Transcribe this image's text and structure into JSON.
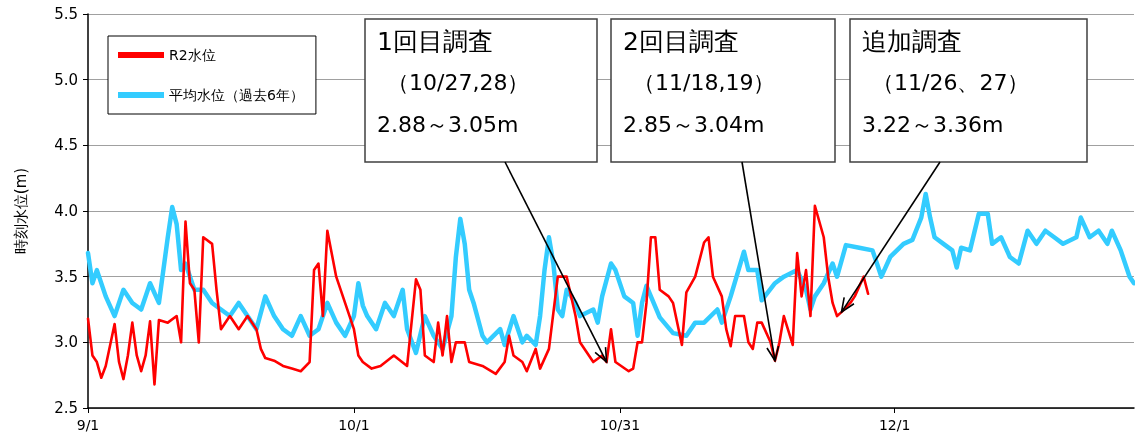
{
  "chart_data": {
    "type": "line",
    "ylabel": "時刻水位(m)",
    "xlim": [
      "--09-01",
      "--12-28"
    ],
    "ylim": [
      2.5,
      5.5
    ],
    "xticks": [
      {
        "value": "--09-01",
        "label": "9/1"
      },
      {
        "value": "--10-01",
        "label": "10/1"
      },
      {
        "value": "--10-31",
        "label": "10/31"
      },
      {
        "value": "--12-01",
        "label": "12/1"
      }
    ],
    "yticks": [
      2.5,
      {
        "value": 3,
        "label": "3.0"
      },
      3.5,
      {
        "value": 4,
        "label": "4.0"
      },
      4.5,
      {
        "value": 5,
        "label": "5.0"
      },
      5.5
    ],
    "grid": "y",
    "legend": "top left",
    "marker": "none",
    "annotations": [
      "1回目調査",
      "（10/27,28）",
      {
        "text": "2.88～3.05m",
        "x": "--10-29T12:00",
        "y": 2.85
      },
      "2回目調査",
      "（11/18,19）",
      {
        "text": "2.85～3.04m",
        "x": "--11-17T12:00",
        "y": 2.86
      },
      "追加調査",
      "（11/26、27）",
      {
        "text": "3.22～3.36m",
        "x": "--11-25",
        "y": 3.23
      }
    ],
    "series": [
      {
        "name": "R2水位",
        "color": "#ff0000",
        "x": [
          "--09-01",
          "--09-01T12:00",
          "--09-02",
          "--09-02T12:00",
          "--09-03",
          "--09-04",
          "--09-04T12:00",
          "--09-05",
          "--09-05T12:00",
          "--09-06",
          "--09-06T12:00",
          "--09-07",
          "--09-07T12:00",
          "--09-08",
          "--09-08T12:00",
          "--09-09",
          "--09-10",
          "--09-11",
          "--09-11T12:00",
          "--09-12",
          "--09-12T12:00",
          "--09-13",
          "--09-13T12:00",
          "--09-14",
          "--09-15",
          "--09-15T12:00",
          "--09-16",
          "--09-17",
          "--09-18",
          "--09-19",
          "--09-20",
          "--09-20T12:00",
          "--09-21",
          "--09-22",
          "--09-23",
          "--09-24",
          "--09-25",
          "--09-26",
          "--09-26T12:00",
          "--09-27",
          "--09-27T12:00",
          "--09-28",
          "--09-29",
          "--09-30",
          "--10-01",
          "--10-01T12:00",
          "--10-02",
          "--10-03",
          "--10-04",
          "--10-05T12:00",
          "--10-07",
          "--10-08",
          "--10-08T12:00",
          "--10-09",
          "--10-10",
          "--10-10T12:00",
          "--10-11",
          "--10-11T12:00",
          "--10-12",
          "--10-12T12:00",
          "--10-13T12:00",
          "--10-14",
          "--10-15T12:00",
          "--10-17",
          "--10-18",
          "--10-18T12:00",
          "--10-19",
          "--10-20",
          "--10-20T12:00",
          "--10-21T12:00",
          "--10-22",
          "--10-23",
          "--10-24",
          "--10-25",
          "--10-26",
          "--10-26T12:00",
          "--10-28",
          "--10-29",
          "--10-29T12:00",
          "--10-30",
          "--10-30T12:00",
          "--11-01",
          "--11-01T12:00",
          "--11-02",
          "--11-02T12:00",
          "--11-03",
          "--11-03T12:00",
          "--11-04",
          "--11-04T12:00",
          "--11-05T12:00",
          "--11-06",
          "--11-07",
          "--11-07T12:00",
          "--11-08T12:00",
          "--11-09T12:00",
          "--11-10",
          "--11-10T12:00",
          "--11-11T12:00",
          "--11-12",
          "--11-12T12:00",
          "--11-13",
          "--11-14",
          "--11-14T12:00",
          "--11-15",
          "--11-15T12:00",
          "--11-16",
          "--11-17",
          "--11-17T12:00",
          "--11-18",
          "--11-18T12:00",
          "--11-19T12:00",
          "--11-20",
          "--11-20T12:00",
          "--11-21",
          "--11-21T12:00",
          "--11-22",
          "--11-23",
          "--11-23T12:00",
          "--11-24",
          "--11-24T12:00",
          "--11-25",
          "--11-26",
          "--11-26T12:00",
          "--11-27T12:00",
          "--11-28"
        ],
        "values": [
          3.18,
          2.9,
          2.85,
          2.73,
          2.82,
          3.14,
          2.85,
          2.72,
          2.9,
          3.15,
          2.9,
          2.78,
          2.9,
          3.16,
          2.68,
          3.17,
          3.15,
          3.2,
          3.0,
          3.92,
          3.45,
          3.4,
          3.0,
          3.8,
          3.75,
          3.4,
          3.1,
          3.2,
          3.1,
          3.2,
          3.1,
          2.95,
          2.88,
          2.86,
          2.82,
          2.8,
          2.78,
          2.85,
          3.55,
          3.6,
          3.2,
          3.85,
          3.5,
          3.3,
          3.1,
          2.9,
          2.85,
          2.8,
          2.82,
          2.9,
          2.82,
          3.48,
          3.4,
          2.9,
          2.85,
          3.15,
          2.9,
          3.2,
          2.85,
          3.0,
          3.0,
          2.85,
          2.82,
          2.76,
          2.85,
          3.05,
          2.9,
          2.85,
          2.78,
          2.95,
          2.8,
          2.95,
          3.5,
          3.5,
          3.2,
          3.0,
          2.85,
          2.9,
          2.85,
          3.1,
          2.85,
          2.78,
          2.8,
          3.0,
          3.0,
          3.3,
          3.8,
          3.8,
          3.4,
          3.35,
          3.3,
          2.98,
          3.38,
          3.5,
          3.76,
          3.8,
          3.5,
          3.35,
          3.1,
          2.97,
          3.2,
          3.2,
          3.0,
          2.95,
          3.15,
          3.15,
          3.0,
          2.86,
          3.0,
          3.2,
          2.98,
          3.68,
          3.35,
          3.55,
          3.2,
          4.04,
          3.8,
          3.5,
          3.3,
          3.2,
          3.23,
          3.3,
          3.35,
          3.5,
          3.37
        ]
      },
      {
        "name": "平均水位（過去6年）",
        "color": "#33ccff",
        "x": [
          "--09-01",
          "--09-01T12:00",
          "--09-02",
          "--09-03",
          "--09-04",
          "--09-05",
          "--09-06",
          "--09-07",
          "--09-08",
          "--09-09",
          "--09-10",
          "--09-10T12:00",
          "--09-11",
          "--09-11T12:00",
          "--09-12",
          "--09-13",
          "--09-14",
          "--09-15",
          "--09-16",
          "--09-17",
          "--09-18",
          "--09-19",
          "--09-20",
          "--09-21",
          "--09-22",
          "--09-23",
          "--09-24",
          "--09-25",
          "--09-26",
          "--09-27",
          "--09-28",
          "--09-29",
          "--09-30",
          "--10-01",
          "--10-01T12:00",
          "--10-02",
          "--10-02T12:00",
          "--10-03T12:00",
          "--10-04T12:00",
          "--10-05T12:00",
          "--10-06T12:00",
          "--10-07",
          "--10-08",
          "--10-09",
          "--10-10",
          "--10-11",
          "--10-12",
          "--10-12T12:00",
          "--10-13",
          "--10-13T12:00",
          "--10-14",
          "--10-14T12:00",
          "--10-15T12:00",
          "--10-16",
          "--10-17T12:00",
          "--10-18",
          "--10-19",
          "--10-20",
          "--10-20T12:00",
          "--10-21T12:00",
          "--10-22",
          "--10-22T12:00",
          "--10-23",
          "--10-23T12:00",
          "--10-24",
          "--10-24T12:00",
          "--10-25",
          "--10-26",
          "--10-26T12:00",
          "--10-28",
          "--10-28T12:00",
          "--10-29",
          "--10-30",
          "--10-30T12:00",
          "--10-31T12:00",
          "--11-01T12:00",
          "--11-02",
          "--11-02T12:00",
          "--11-03",
          "--11-04T12:00",
          "--11-06",
          "--11-07T12:00",
          "--11-08T12:00",
          "--11-09T12:00",
          "--11-11",
          "--11-11T12:00",
          "--11-12T12:00",
          "--11-14",
          "--11-14T12:00",
          "--11-15T12:00",
          "--11-16",
          "--11-17T12:00",
          "--11-18T12:00",
          "--11-20",
          "--11-21",
          "--11-21T12:00",
          "--11-22",
          "--11-23",
          "--11-24",
          "--11-24T12:00",
          "--11-25T12:00",
          "--11-27",
          "--11-28T12:00",
          "--11-29",
          "--11-29T12:00",
          "--11-30T12:00",
          "--12-02",
          "--12-03",
          "--12-04",
          "--12-04T12:00",
          "--12-05",
          "--12-05T12:00",
          "--12-06T12:00",
          "--12-07T12:00",
          "--12-08",
          "--12-08T12:00",
          "--12-09T12:00",
          "--12-10T12:00",
          "--12-11T12:00",
          "--12-12",
          "--12-13",
          "--12-14",
          "--12-15",
          "--12-16",
          "--12-17",
          "--12-18",
          "--12-19",
          "--12-20",
          "--12-21T12:00",
          "--12-22",
          "--12-23",
          "--12-24",
          "--12-25",
          "--12-25T12:00",
          "--12-26T12:00",
          "--12-27T12:00",
          "--12-28"
        ],
        "values": [
          3.68,
          3.45,
          3.55,
          3.35,
          3.2,
          3.4,
          3.3,
          3.25,
          3.45,
          3.3,
          3.8,
          4.03,
          3.9,
          3.55,
          3.6,
          3.4,
          3.4,
          3.3,
          3.25,
          3.2,
          3.3,
          3.2,
          3.1,
          3.35,
          3.2,
          3.1,
          3.05,
          3.2,
          3.05,
          3.1,
          3.3,
          3.15,
          3.05,
          3.2,
          3.45,
          3.28,
          3.2,
          3.1,
          3.3,
          3.2,
          3.4,
          3.1,
          2.92,
          3.2,
          3.05,
          2.95,
          3.2,
          3.65,
          3.94,
          3.75,
          3.4,
          3.3,
          3.05,
          3.0,
          3.1,
          2.98,
          3.2,
          3.0,
          3.05,
          2.98,
          3.2,
          3.55,
          3.8,
          3.6,
          3.25,
          3.2,
          3.4,
          3.3,
          3.2,
          3.25,
          3.15,
          3.35,
          3.6,
          3.55,
          3.35,
          3.3,
          3.05,
          3.3,
          3.43,
          3.19,
          3.07,
          3.05,
          3.15,
          3.15,
          3.25,
          3.15,
          3.35,
          3.69,
          3.55,
          3.55,
          3.32,
          3.45,
          3.5,
          3.55,
          3.4,
          3.25,
          3.35,
          3.45,
          3.6,
          3.5,
          3.74,
          3.72,
          3.7,
          3.6,
          3.5,
          3.65,
          3.75,
          3.78,
          3.95,
          4.13,
          3.95,
          3.8,
          3.75,
          3.7,
          3.57,
          3.72,
          3.7,
          3.98,
          3.98,
          3.75,
          3.8,
          3.65,
          3.6,
          3.85,
          3.75,
          3.85,
          3.8,
          3.75,
          3.8,
          3.95,
          3.8,
          3.85,
          3.75,
          3.85,
          3.7,
          3.5,
          3.45
        ]
      }
    ]
  }
}
